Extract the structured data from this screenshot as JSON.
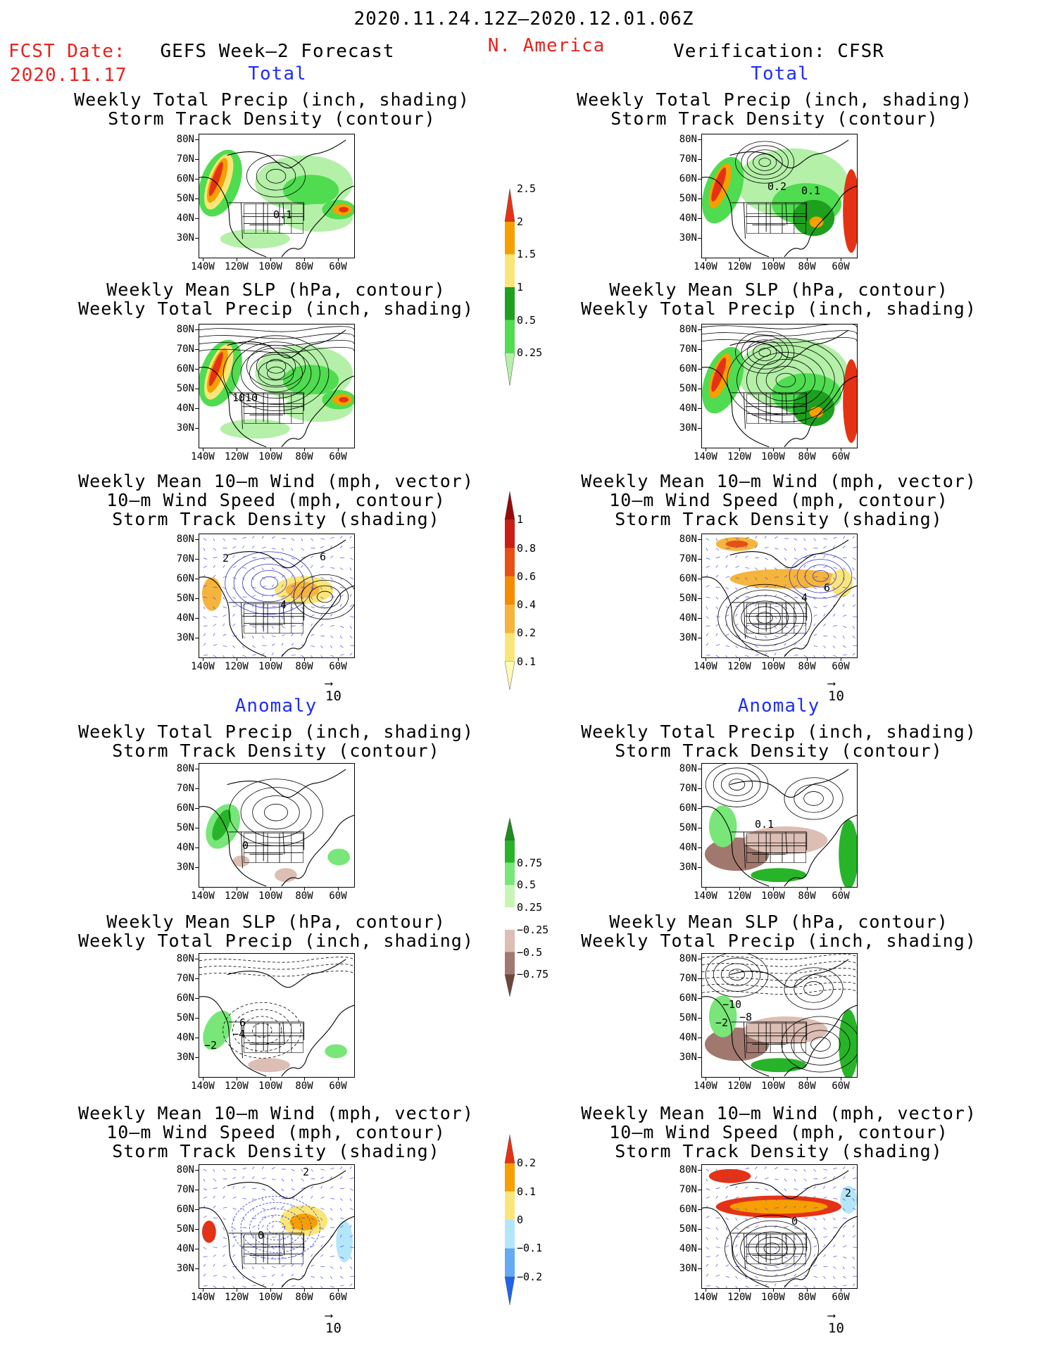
{
  "header": {
    "date_range": "2020.11.24.12Z‒2020.12.01.06Z",
    "fcst_label": "FCST Date:",
    "fcst_date": "2020.11.17",
    "left_title": "GEFS Week‒2 Forecast",
    "region": "N. America",
    "right_title": "Verification: CFSR"
  },
  "sections": {
    "total": "Total",
    "anomaly": "Anomaly"
  },
  "panel_titles": {
    "precip_storm": [
      "Weekly Total Precip (inch, shading)",
      "Storm Track Density (contour)"
    ],
    "slp_precip": [
      "Weekly Mean SLP (hPa, contour)",
      "Weekly Total Precip (inch, shading)"
    ],
    "wind_storm": [
      "Weekly Mean 10‒m Wind (mph, vector)",
      "10‒m Wind Speed (mph, contour)",
      "Storm Track Density (shading)"
    ]
  },
  "axes": {
    "lat_ticks": [
      "80N",
      "70N",
      "60N",
      "50N",
      "40N",
      "30N"
    ],
    "lon_ticks": [
      "140W",
      "120W",
      "100W",
      "80W",
      "60W"
    ]
  },
  "vector_ref": "10",
  "contour_labels": {
    "fc_total_precip": "0.1",
    "fc_total_slp": "1010",
    "fc_total_wind_a": "2",
    "fc_total_wind_b": "4",
    "fc_total_wind_c": "6",
    "ver_total_precip_a": "0.2",
    "ver_total_precip_b": "0.1",
    "ver_total_wind_a": "4",
    "ver_total_wind_b": "6",
    "fc_anom_precip": "0",
    "ver_anom_precip": "0.1",
    "fc_anom_slp_a": "−2",
    "fc_anom_slp_b": "−4",
    "fc_anom_slp_c": "6",
    "ver_anom_slp_a": "−10",
    "ver_anom_slp_b": "−8",
    "ver_anom_slp_c": "−2",
    "fc_anom_wind_a": "0",
    "fc_anom_wind_b": "2",
    "ver_anom_wind_a": "2",
    "ver_anom_wind_b": "0"
  },
  "colorbars": {
    "precip_total": {
      "labels": [
        "0.25",
        "0.5",
        "1",
        "1.5",
        "2",
        "2.5"
      ],
      "colors": [
        "#b4f0a8",
        "#50dc50",
        "#1ea01e",
        "#fae678",
        "#f5a000",
        "#e63214"
      ]
    },
    "storm_total": {
      "labels": [
        "0.1",
        "0.2",
        "0.4",
        "0.6",
        "0.8",
        "1"
      ],
      "colors": [
        "#fffab4",
        "#fae678",
        "#f5b43c",
        "#f58c00",
        "#e65014",
        "#c81e14",
        "#960a0a"
      ]
    },
    "precip_anom": {
      "labels": [
        "−0.75",
        "−0.5",
        "−0.25",
        "0.25",
        "0.5",
        "0.75"
      ],
      "colors": [
        "#6e463c",
        "#a0786e",
        "#dcbeb4",
        "#ffffff",
        "#c8f5b4",
        "#78e678",
        "#28b428",
        "#1e8c1e"
      ]
    },
    "storm_anom": {
      "labels": [
        "−0.2",
        "−0.1",
        "0",
        "0.1",
        "0.2"
      ],
      "colors": [
        "#1e64e6",
        "#64aaf5",
        "#b4e6fa",
        "#fae678",
        "#f5a000",
        "#e63214"
      ]
    }
  }
}
